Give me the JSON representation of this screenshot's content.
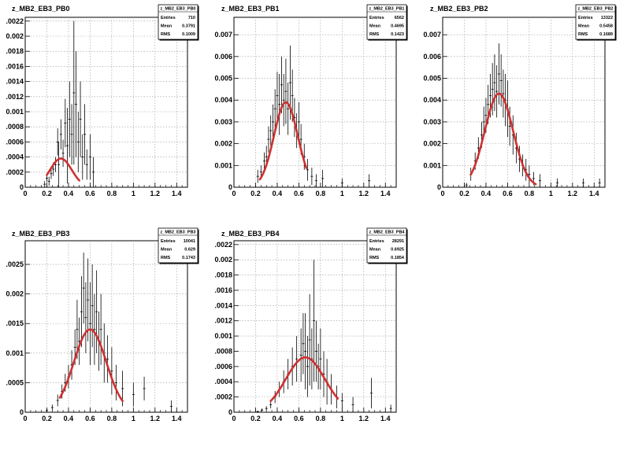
{
  "chart_data": [
    {
      "type": "scatter",
      "title": "z_MB2_EB3_PB0",
      "stats": {
        "name": "z_MB2_EB3_PB0",
        "entries_label": "Entries",
        "entries": "710",
        "mean_label": "Mean",
        "mean": "0.3791",
        "rms_label": "RMS",
        "rms": "0.1009"
      },
      "xlim": [
        0,
        1.5
      ],
      "ylim": [
        0,
        0.00225
      ],
      "xticks": [
        "0",
        "0.2",
        "0.4",
        "0.6",
        "0.8",
        "1",
        "1.2",
        "1.4"
      ],
      "yticks": [
        "0.0002",
        "0.0004",
        "0.0006",
        "0.0008",
        "0.001",
        "0.0012",
        "0.0014",
        "0.0016",
        "0.0018",
        "0.002",
        "0.0022"
      ],
      "ytick_labels": [
        ".0002",
        ".0004",
        ".0006",
        ".0008",
        "0.001",
        ".0012",
        ".0014",
        ".0016",
        ".0018",
        "0.002",
        ".0022"
      ],
      "grid": true,
      "fit": {
        "color": "#d03030",
        "amplitude": 0.00038,
        "mean": 0.33,
        "sigma": 0.1,
        "range": [
          0.2,
          0.5
        ]
      },
      "points": [
        {
          "x": 0.18,
          "y": 4e-05,
          "err": 4e-05
        },
        {
          "x": 0.2,
          "y": 0.00012,
          "err": 5e-05
        },
        {
          "x": 0.22,
          "y": 8e-05,
          "err": 6e-05
        },
        {
          "x": 0.24,
          "y": 0.00018,
          "err": 7e-05
        },
        {
          "x": 0.26,
          "y": 0.00024,
          "err": 9e-05
        },
        {
          "x": 0.28,
          "y": 0.0003,
          "err": 0.0001
        },
        {
          "x": 0.3,
          "y": 0.0006,
          "err": 0.00018
        },
        {
          "x": 0.31,
          "y": 0.0003,
          "err": 0.0003
        },
        {
          "x": 0.33,
          "y": 0.0007,
          "err": 0.0002
        },
        {
          "x": 0.35,
          "y": 0.00045,
          "err": 0.00018
        },
        {
          "x": 0.37,
          "y": 0.00085,
          "err": 0.00032
        },
        {
          "x": 0.39,
          "y": 0.00055,
          "err": 0.0005
        },
        {
          "x": 0.41,
          "y": 0.0009,
          "err": 0.0005
        },
        {
          "x": 0.43,
          "y": 0.0007,
          "err": 0.0004
        },
        {
          "x": 0.45,
          "y": 0.00125,
          "err": 0.00095
        },
        {
          "x": 0.47,
          "y": 0.0011,
          "err": 0.0007
        },
        {
          "x": 0.49,
          "y": 0.0006,
          "err": 0.0004
        },
        {
          "x": 0.51,
          "y": 0.0009,
          "err": 0.0005
        },
        {
          "x": 0.53,
          "y": 0.0004,
          "err": 0.0003
        },
        {
          "x": 0.55,
          "y": 0.0007,
          "err": 0.0004
        },
        {
          "x": 0.57,
          "y": 0.0003,
          "err": 0.0002
        },
        {
          "x": 0.6,
          "y": 0.0004,
          "err": 0.0003
        },
        {
          "x": 0.63,
          "y": 0.0002,
          "err": 0.0002
        }
      ]
    },
    {
      "type": "scatter",
      "title": "z_MB2_EB3_PB1",
      "stats": {
        "name": "z_MB2_EB3_PB1",
        "entries_label": "Entries",
        "entries": "6562",
        "mean_label": "Mean",
        "mean": "0.4695",
        "rms_label": "RMS",
        "rms": "0.1423"
      },
      "xlim": [
        0,
        1.5
      ],
      "ylim": [
        0,
        0.0078
      ],
      "xticks": [
        "0",
        "0.2",
        "0.4",
        "0.6",
        "0.8",
        "1",
        "1.2",
        "1.4"
      ],
      "yticks": [
        "0.001",
        "0.002",
        "0.003",
        "0.004",
        "0.005",
        "0.006",
        "0.007"
      ],
      "ytick_labels": [
        "0.001",
        "0.002",
        "0.003",
        "0.004",
        "0.005",
        "0.006",
        "0.007"
      ],
      "grid": true,
      "fit": {
        "color": "#d03030",
        "amplitude": 0.0039,
        "mean": 0.48,
        "sigma": 0.11,
        "range": [
          0.24,
          0.67
        ]
      },
      "points": [
        {
          "x": 0.22,
          "y": 0.0005,
          "err": 0.0003
        },
        {
          "x": 0.25,
          "y": 0.0007,
          "err": 0.0003
        },
        {
          "x": 0.28,
          "y": 0.0012,
          "err": 0.0004
        },
        {
          "x": 0.3,
          "y": 0.0014,
          "err": 0.0005
        },
        {
          "x": 0.32,
          "y": 0.0022,
          "err": 0.0006
        },
        {
          "x": 0.34,
          "y": 0.0026,
          "err": 0.0007
        },
        {
          "x": 0.36,
          "y": 0.003,
          "err": 0.0008
        },
        {
          "x": 0.38,
          "y": 0.0036,
          "err": 0.0009
        },
        {
          "x": 0.4,
          "y": 0.0042,
          "err": 0.0011
        },
        {
          "x": 0.42,
          "y": 0.0038,
          "err": 0.0014
        },
        {
          "x": 0.44,
          "y": 0.0047,
          "err": 0.0013
        },
        {
          "x": 0.46,
          "y": 0.004,
          "err": 0.0012
        },
        {
          "x": 0.48,
          "y": 0.0044,
          "err": 0.0015
        },
        {
          "x": 0.5,
          "y": 0.0036,
          "err": 0.0012
        },
        {
          "x": 0.52,
          "y": 0.0048,
          "err": 0.0017
        },
        {
          "x": 0.54,
          "y": 0.0042,
          "err": 0.0012
        },
        {
          "x": 0.56,
          "y": 0.0032,
          "err": 0.0009
        },
        {
          "x": 0.58,
          "y": 0.0026,
          "err": 0.0008
        },
        {
          "x": 0.6,
          "y": 0.003,
          "err": 0.0009
        },
        {
          "x": 0.62,
          "y": 0.0022,
          "err": 0.0007
        },
        {
          "x": 0.65,
          "y": 0.0014,
          "err": 0.0006
        },
        {
          "x": 0.68,
          "y": 0.0008,
          "err": 0.0005
        },
        {
          "x": 0.72,
          "y": 0.0005,
          "err": 0.0004
        },
        {
          "x": 0.76,
          "y": 0.0003,
          "err": 0.0003
        },
        {
          "x": 0.82,
          "y": 0.0004,
          "err": 0.0004
        },
        {
          "x": 1.0,
          "y": 0.0002,
          "err": 0.0002
        },
        {
          "x": 1.25,
          "y": 0.0003,
          "err": 0.0003
        }
      ]
    },
    {
      "type": "scatter",
      "title": "z_MB2_EB3_PB2",
      "stats": {
        "name": "z_MB2_EB3_PB2",
        "entries_label": "Entries",
        "entries": "13322",
        "mean_label": "Mean",
        "mean": "0.5458",
        "rms_label": "RMS",
        "rms": "0.1689"
      },
      "xlim": [
        0,
        1.5
      ],
      "ylim": [
        0,
        0.0078
      ],
      "xticks": [
        "0",
        "0.2",
        "0.4",
        "0.6",
        "0.8",
        "1",
        "1.2",
        "1.4"
      ],
      "yticks": [
        "0.001",
        "0.002",
        "0.003",
        "0.004",
        "0.005",
        "0.006",
        "0.007"
      ],
      "ytick_labels": [
        "0.001",
        "0.002",
        "0.003",
        "0.004",
        "0.005",
        "0.006",
        "0.007"
      ],
      "grid": true,
      "fit": {
        "color": "#d03030",
        "amplitude": 0.0043,
        "mean": 0.52,
        "sigma": 0.13,
        "range": [
          0.26,
          0.86
        ]
      },
      "points": [
        {
          "x": 0.22,
          "y": 0.0001,
          "err": 0.0001
        },
        {
          "x": 0.26,
          "y": 0.0006,
          "err": 0.0003
        },
        {
          "x": 0.3,
          "y": 0.0012,
          "err": 0.0004
        },
        {
          "x": 0.33,
          "y": 0.0018,
          "err": 0.0005
        },
        {
          "x": 0.36,
          "y": 0.0024,
          "err": 0.0006
        },
        {
          "x": 0.38,
          "y": 0.003,
          "err": 0.0007
        },
        {
          "x": 0.4,
          "y": 0.0033,
          "err": 0.0008
        },
        {
          "x": 0.42,
          "y": 0.0038,
          "err": 0.0009
        },
        {
          "x": 0.44,
          "y": 0.0042,
          "err": 0.001
        },
        {
          "x": 0.46,
          "y": 0.0045,
          "err": 0.0012
        },
        {
          "x": 0.48,
          "y": 0.0048,
          "err": 0.0013
        },
        {
          "x": 0.5,
          "y": 0.0044,
          "err": 0.0012
        },
        {
          "x": 0.52,
          "y": 0.0052,
          "err": 0.0014
        },
        {
          "x": 0.54,
          "y": 0.0049,
          "err": 0.0012
        },
        {
          "x": 0.56,
          "y": 0.0043,
          "err": 0.0011
        },
        {
          "x": 0.58,
          "y": 0.004,
          "err": 0.0012
        },
        {
          "x": 0.6,
          "y": 0.0036,
          "err": 0.0013
        },
        {
          "x": 0.62,
          "y": 0.0028,
          "err": 0.0009
        },
        {
          "x": 0.65,
          "y": 0.0024,
          "err": 0.0009
        },
        {
          "x": 0.68,
          "y": 0.0018,
          "err": 0.0007
        },
        {
          "x": 0.71,
          "y": 0.0013,
          "err": 0.0006
        },
        {
          "x": 0.74,
          "y": 0.001,
          "err": 0.0005
        },
        {
          "x": 0.77,
          "y": 0.0008,
          "err": 0.0005
        },
        {
          "x": 0.8,
          "y": 0.0006,
          "err": 0.0004
        },
        {
          "x": 0.84,
          "y": 0.0004,
          "err": 0.0003
        },
        {
          "x": 0.9,
          "y": 0.0003,
          "err": 0.0003
        },
        {
          "x": 1.06,
          "y": 0.0002,
          "err": 0.0002
        },
        {
          "x": 1.3,
          "y": 0.0002,
          "err": 0.0002
        },
        {
          "x": 1.45,
          "y": 0.0002,
          "err": 0.0002
        }
      ]
    },
    {
      "type": "scatter",
      "title": "z_MB2_EB3_PB3",
      "stats": {
        "name": "z_MB2_EB3_PB3",
        "entries_label": "Entries",
        "entries": "10041",
        "mean_label": "Mean",
        "mean": "0.629",
        "rms_label": "RMS",
        "rms": "0.1743"
      },
      "xlim": [
        0,
        1.5
      ],
      "ylim": [
        0,
        0.0029
      ],
      "xticks": [
        "0",
        "0.2",
        "0.4",
        "0.6",
        "0.8",
        "1",
        "1.2",
        "1.4"
      ],
      "yticks": [
        "0.0005",
        "0.001",
        "0.0015",
        "0.002",
        "0.0025"
      ],
      "ytick_labels": [
        ".0005",
        "0.001",
        ".0015",
        "0.002",
        ".0025"
      ],
      "grid": true,
      "fit": {
        "color": "#d03030",
        "amplitude": 0.0014,
        "mean": 0.6,
        "sigma": 0.15,
        "range": [
          0.32,
          0.9
        ]
      },
      "points": [
        {
          "x": 0.2,
          "y": 3e-05,
          "err": 3e-05
        },
        {
          "x": 0.25,
          "y": 8e-05,
          "err": 5e-05
        },
        {
          "x": 0.3,
          "y": 0.0002,
          "err": 0.0001
        },
        {
          "x": 0.34,
          "y": 0.00035,
          "err": 0.00012
        },
        {
          "x": 0.37,
          "y": 0.0005,
          "err": 0.00015
        },
        {
          "x": 0.4,
          "y": 0.0006,
          "err": 0.0002
        },
        {
          "x": 0.43,
          "y": 0.0008,
          "err": 0.00025
        },
        {
          "x": 0.46,
          "y": 0.0011,
          "err": 0.0003
        },
        {
          "x": 0.48,
          "y": 0.0014,
          "err": 0.0005
        },
        {
          "x": 0.5,
          "y": 0.0012,
          "err": 0.0004
        },
        {
          "x": 0.52,
          "y": 0.0017,
          "err": 0.0006
        },
        {
          "x": 0.54,
          "y": 0.0021,
          "err": 0.0006
        },
        {
          "x": 0.56,
          "y": 0.0016,
          "err": 0.0006
        },
        {
          "x": 0.58,
          "y": 0.0019,
          "err": 0.0007
        },
        {
          "x": 0.6,
          "y": 0.0015,
          "err": 0.0007
        },
        {
          "x": 0.62,
          "y": 0.0018,
          "err": 0.0007
        },
        {
          "x": 0.64,
          "y": 0.0014,
          "err": 0.0006
        },
        {
          "x": 0.66,
          "y": 0.0017,
          "err": 0.0007
        },
        {
          "x": 0.68,
          "y": 0.0012,
          "err": 0.0005
        },
        {
          "x": 0.7,
          "y": 0.0014,
          "err": 0.0006
        },
        {
          "x": 0.73,
          "y": 0.001,
          "err": 0.0005
        },
        {
          "x": 0.76,
          "y": 0.0009,
          "err": 0.0004
        },
        {
          "x": 0.8,
          "y": 0.0007,
          "err": 0.0004
        },
        {
          "x": 0.84,
          "y": 0.0005,
          "err": 0.0003
        },
        {
          "x": 0.9,
          "y": 0.0004,
          "err": 0.0003
        },
        {
          "x": 1.0,
          "y": 0.0003,
          "err": 0.0002
        },
        {
          "x": 1.1,
          "y": 0.0004,
          "err": 0.0002
        },
        {
          "x": 1.35,
          "y": 0.0001,
          "err": 0.0001
        }
      ]
    },
    {
      "type": "scatter",
      "title": "z_MB2_EB3_PB4",
      "stats": {
        "name": "z_MB2_EB3_PB4",
        "entries_label": "Entries",
        "entries": "28291",
        "mean_label": "Mean",
        "mean": "0.6925",
        "rms_label": "RMS",
        "rms": "0.1854"
      },
      "xlim": [
        0,
        1.5
      ],
      "ylim": [
        0,
        0.00225
      ],
      "xticks": [
        "0",
        "0.2",
        "0.4",
        "0.6",
        "0.8",
        "1",
        "1.2",
        "1.4"
      ],
      "yticks": [
        "0.0002",
        "0.0004",
        "0.0006",
        "0.0008",
        "0.001",
        "0.0012",
        "0.0014",
        "0.0016",
        "0.0018",
        "0.002",
        "0.0022"
      ],
      "ytick_labels": [
        ".0002",
        ".0004",
        ".0006",
        ".0008",
        "0.001",
        ".0012",
        ".0014",
        ".0016",
        ".0018",
        "0.002",
        ".0022"
      ],
      "grid": true,
      "fit": {
        "color": "#d03030",
        "amplitude": 0.00072,
        "mean": 0.66,
        "sigma": 0.18,
        "range": [
          0.34,
          0.96
        ]
      },
      "points": [
        {
          "x": 0.22,
          "y": 1e-05,
          "err": 1e-05
        },
        {
          "x": 0.26,
          "y": 3e-05,
          "err": 2e-05
        },
        {
          "x": 0.3,
          "y": 5e-05,
          "err": 3e-05
        },
        {
          "x": 0.34,
          "y": 0.0001,
          "err": 5e-05
        },
        {
          "x": 0.38,
          "y": 0.0002,
          "err": 8e-05
        },
        {
          "x": 0.42,
          "y": 0.0003,
          "err": 0.0001
        },
        {
          "x": 0.46,
          "y": 0.0004,
          "err": 0.00015
        },
        {
          "x": 0.5,
          "y": 0.0005,
          "err": 0.0002
        },
        {
          "x": 0.54,
          "y": 0.0006,
          "err": 0.00025
        },
        {
          "x": 0.58,
          "y": 0.0007,
          "err": 0.0003
        },
        {
          "x": 0.62,
          "y": 0.00075,
          "err": 0.00035
        },
        {
          "x": 0.64,
          "y": 0.0009,
          "err": 0.0004
        },
        {
          "x": 0.66,
          "y": 0.0008,
          "err": 0.0005
        },
        {
          "x": 0.68,
          "y": 0.0006,
          "err": 0.0004
        },
        {
          "x": 0.7,
          "y": 0.00095,
          "err": 0.0006
        },
        {
          "x": 0.72,
          "y": 0.0007,
          "err": 0.0004
        },
        {
          "x": 0.74,
          "y": 0.0012,
          "err": 0.0008
        },
        {
          "x": 0.76,
          "y": 0.0008,
          "err": 0.0004
        },
        {
          "x": 0.78,
          "y": 0.0006,
          "err": 0.0003
        },
        {
          "x": 0.8,
          "y": 0.0007,
          "err": 0.0004
        },
        {
          "x": 0.83,
          "y": 0.0005,
          "err": 0.0003
        },
        {
          "x": 0.86,
          "y": 0.0004,
          "err": 0.0003
        },
        {
          "x": 0.9,
          "y": 0.0003,
          "err": 0.0002
        },
        {
          "x": 0.95,
          "y": 0.0002,
          "err": 0.00015
        },
        {
          "x": 1.0,
          "y": 0.00015,
          "err": 0.0001
        },
        {
          "x": 1.1,
          "y": 0.0001,
          "err": 0.0001
        },
        {
          "x": 1.27,
          "y": 0.00025,
          "err": 0.0002
        },
        {
          "x": 1.45,
          "y": 5e-05,
          "err": 5e-05
        }
      ]
    }
  ]
}
